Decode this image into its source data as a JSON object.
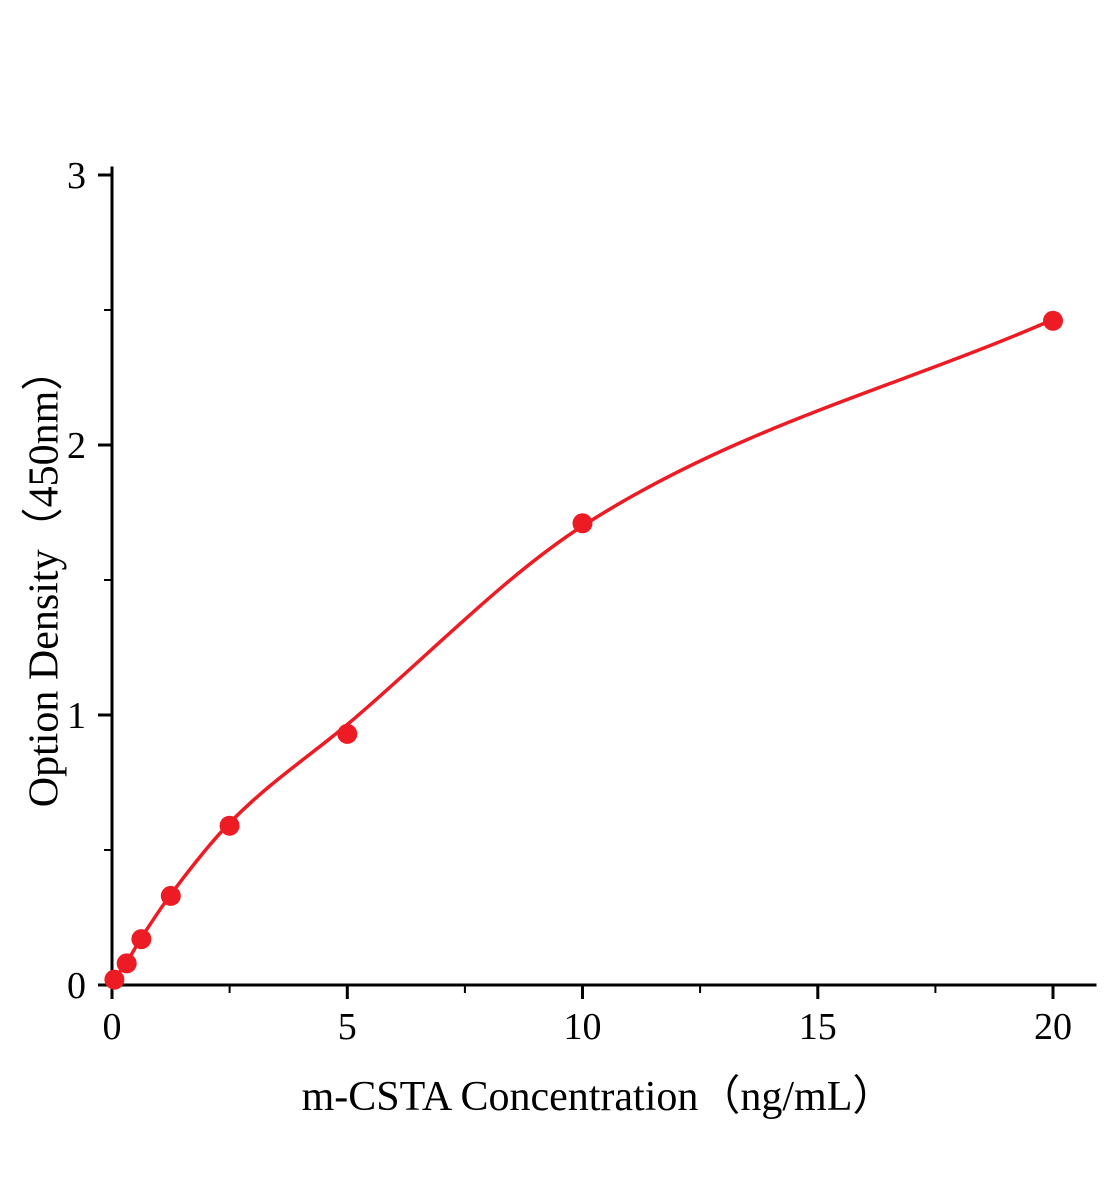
{
  "chart_data": {
    "type": "scatter",
    "title": "",
    "xlabel": "m-CSTA Concentration（ng/mL）",
    "ylabel": "Option Density（450nm）",
    "xlim": [
      0,
      20.9
    ],
    "ylim": [
      0,
      3
    ],
    "x_ticks": [
      0,
      5,
      10,
      15,
      20
    ],
    "y_ticks": [
      0,
      1,
      2,
      3
    ],
    "x_minor_ticks": [
      2.5,
      7.5,
      12.5,
      17.5
    ],
    "y_minor_ticks": [
      0.5,
      1.5,
      2.5
    ],
    "grid": false,
    "legend": "none",
    "marker_color": "#ed1c24",
    "line_color": "#ed1c24",
    "axis_color": "#000000",
    "points": {
      "x": [
        0.05,
        0.3125,
        0.625,
        1.25,
        2.5,
        5,
        10,
        20
      ],
      "y": [
        0.02,
        0.08,
        0.17,
        0.33,
        0.59,
        0.93,
        1.71,
        2.46
      ]
    },
    "curve": {
      "x": [
        0,
        0.3125,
        0.625,
        1.25,
        2.5,
        5,
        10,
        20
      ],
      "y": [
        0.01,
        0.085,
        0.175,
        0.335,
        0.6,
        0.965,
        1.7,
        2.465
      ]
    }
  }
}
